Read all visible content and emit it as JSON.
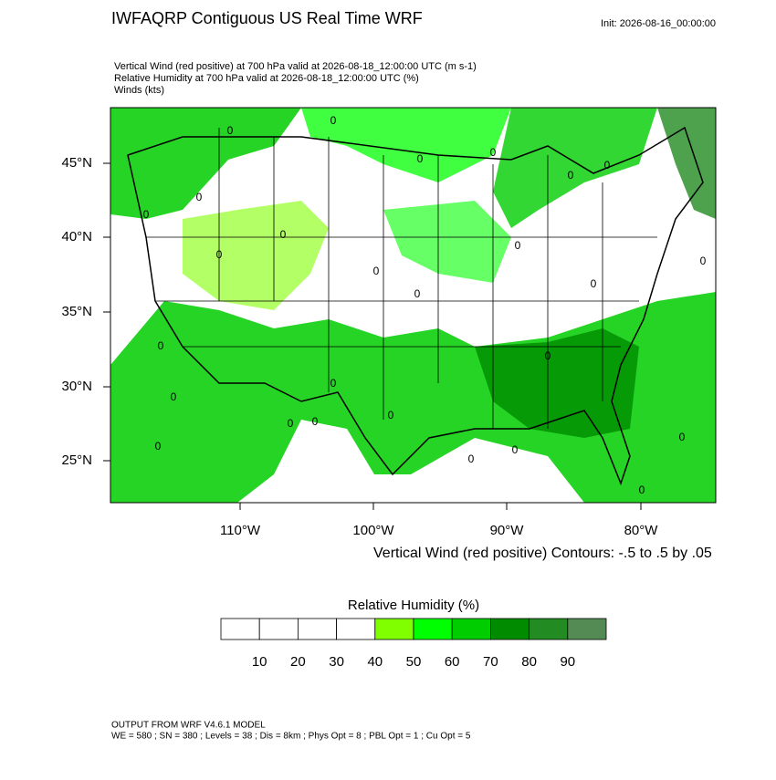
{
  "header": {
    "title": "IWFAQRP Contiguous US Real Time WRF",
    "init": "Init: 2026-08-16_00:00:00",
    "descriptions": [
      "Vertical Wind (red positive) at 700 hPa valid at 2026-08-18_12:00:00 UTC   (m s-1)",
      "Relative Humidity at 700 hPa valid at 2026-08-18_12:00:00 UTC   (%)",
      "Winds   (kts)"
    ]
  },
  "map": {
    "lat_labels": [
      "45°N",
      "40°N",
      "35°N",
      "30°N",
      "25°N"
    ],
    "lon_labels": [
      "110°W",
      "100°W",
      "90°W",
      "80°W"
    ],
    "contour_label": "0",
    "contour_note": "Vertical Wind (red positive) Contours: -.5 to .5 by .05"
  },
  "colorbar": {
    "title": "Relative Humidity  (%)",
    "colors": [
      "#ffffff",
      "#ffffff",
      "#ffffff",
      "#ffffff",
      "#80ff00",
      "#00ff00",
      "#00cd00",
      "#008b00",
      "#228b22",
      "#548b54"
    ],
    "labels": [
      "10",
      "20",
      "30",
      "40",
      "50",
      "60",
      "70",
      "80",
      "90"
    ]
  },
  "footer": {
    "lines": [
      "OUTPUT FROM WRF V4.6.1 MODEL",
      "WE = 580 ; SN = 380 ; Levels = 38 ; Dis = 8km ; Phys Opt = 8 ; PBL Opt = 1 ; Cu Opt = 5"
    ]
  }
}
